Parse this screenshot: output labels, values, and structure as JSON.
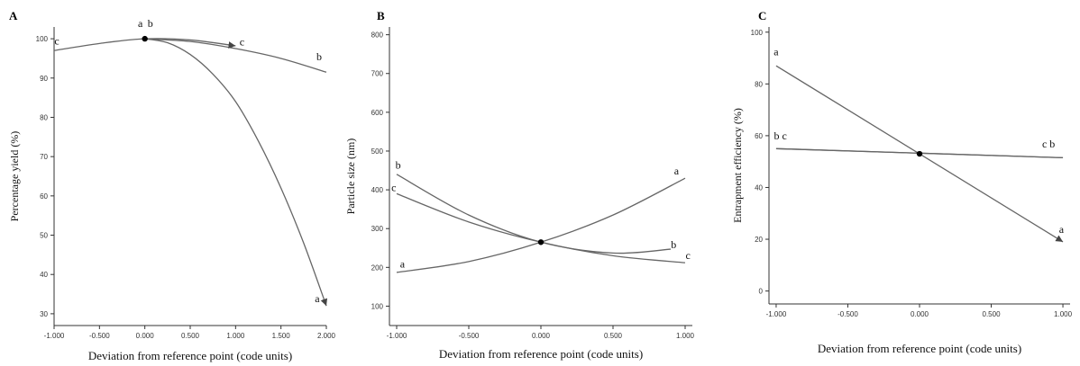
{
  "chart_data": [
    {
      "type": "line",
      "panel_label": "A",
      "xlabel": "Deviation from reference point (code units)",
      "ylabel": "Percentage yield (%)",
      "xlim": [
        -1.0,
        2.0
      ],
      "ylim": [
        27,
        103
      ],
      "xticks": [
        -1.0,
        -0.5,
        0.0,
        0.5,
        1.0,
        1.5,
        2.0
      ],
      "xtick_labels": [
        "-1.000",
        "-0.500",
        "0.000",
        "0.500",
        "1.000",
        "1.500",
        "2.000"
      ],
      "yticks": [
        30,
        40,
        50,
        60,
        70,
        80,
        90,
        100
      ],
      "ytick_labels": [
        "30",
        "40",
        "50",
        "60",
        "70",
        "80",
        "90",
        "100"
      ],
      "reference_point": {
        "x": 0.0,
        "y": 100
      },
      "series": [
        {
          "name": "a",
          "x": [
            0.0,
            0.25,
            0.5,
            0.75,
            1.0,
            1.25,
            1.5,
            1.75,
            2.0
          ],
          "y": [
            100,
            99,
            96,
            91,
            84,
            74,
            62,
            48,
            32
          ],
          "arrow": true
        },
        {
          "name": "b",
          "x": [
            0.0,
            0.5,
            1.0,
            1.5,
            2.0
          ],
          "y": [
            100,
            99.3,
            97.5,
            95,
            91.5
          ],
          "arrow": false
        },
        {
          "name": "c",
          "x": [
            -1.0,
            -0.5,
            0.0,
            0.5,
            1.0
          ],
          "y": [
            97,
            98.8,
            100,
            99.7,
            98.2
          ],
          "arrow": true
        }
      ],
      "curve_labels": [
        {
          "text": "a",
          "x": 1.9,
          "y": 33
        },
        {
          "text": "a",
          "x": -0.05,
          "y": 103
        },
        {
          "text": "b",
          "x": 0.06,
          "y": 103
        },
        {
          "text": "b",
          "x": 1.92,
          "y": 94.5
        },
        {
          "text": "c",
          "x": -0.97,
          "y": 98.5
        },
        {
          "text": "c",
          "x": 1.07,
          "y": 98.3
        }
      ]
    },
    {
      "type": "line",
      "panel_label": "B",
      "xlabel": "Deviation from reference point (code units)",
      "ylabel": "Particle size (nm)",
      "xlim": [
        -1.05,
        1.05
      ],
      "ylim": [
        50,
        820
      ],
      "xticks": [
        -1.0,
        -0.5,
        0.0,
        0.5,
        1.0
      ],
      "xtick_labels": [
        "-1.000",
        "-0.500",
        "0.000",
        "0.500",
        "1.000"
      ],
      "yticks": [
        100,
        200,
        300,
        400,
        500,
        600,
        700,
        800
      ],
      "ytick_labels": [
        "100",
        "200",
        "300",
        "400",
        "500",
        "600",
        "700",
        "800"
      ],
      "reference_point": {
        "x": 0.0,
        "y": 265
      },
      "series": [
        {
          "name": "a",
          "x": [
            -1.0,
            -0.5,
            0.0,
            0.5,
            1.0
          ],
          "y": [
            187,
            215,
            265,
            335,
            430
          ],
          "arrow": false
        },
        {
          "name": "b",
          "x": [
            -1.0,
            -0.5,
            0.0,
            0.5,
            0.9
          ],
          "y": [
            440,
            335,
            265,
            237,
            247
          ],
          "arrow": false
        },
        {
          "name": "c",
          "x": [
            -1.0,
            -0.5,
            0.0,
            0.5,
            1.0
          ],
          "y": [
            390,
            317,
            265,
            230,
            212
          ],
          "arrow": false
        }
      ],
      "curve_labels": [
        {
          "text": "a",
          "x": -0.96,
          "y": 200
        },
        {
          "text": "a",
          "x": 0.94,
          "y": 440
        },
        {
          "text": "b",
          "x": -0.99,
          "y": 455
        },
        {
          "text": "b",
          "x": 0.92,
          "y": 250
        },
        {
          "text": "c",
          "x": -1.02,
          "y": 397
        },
        {
          "text": "c",
          "x": 1.02,
          "y": 222
        }
      ]
    },
    {
      "type": "line",
      "panel_label": "C",
      "xlabel": "Deviation from reference point (code units)",
      "ylabel": "Entrapment efficiency (%)",
      "xlim": [
        -1.05,
        1.05
      ],
      "ylim": [
        -5,
        102
      ],
      "xticks": [
        -1.0,
        -0.5,
        0.0,
        0.5,
        1.0
      ],
      "xtick_labels": [
        "-1.000",
        "-0.500",
        "0.000",
        "0.500",
        "1.000"
      ],
      "yticks": [
        0,
        20,
        40,
        60,
        80,
        100
      ],
      "ytick_labels": [
        "0",
        "20",
        "40",
        "60",
        "80",
        "100"
      ],
      "reference_point": {
        "x": 0.0,
        "y": 53
      },
      "series": [
        {
          "name": "a",
          "x": [
            -1.0,
            1.0
          ],
          "y": [
            87,
            19
          ],
          "arrow": true
        },
        {
          "name": "b",
          "x": [
            -1.0,
            1.0
          ],
          "y": [
            55,
            51.5
          ],
          "arrow": false
        },
        {
          "name": "c",
          "x": [
            -1.0,
            1.0
          ],
          "y": [
            55,
            51.5
          ],
          "arrow": false
        }
      ],
      "curve_labels": [
        {
          "text": "a",
          "x": -1.0,
          "y": 91
        },
        {
          "text": "a",
          "x": 0.99,
          "y": 22.5
        },
        {
          "text": "b c",
          "x": -0.97,
          "y": 58.5
        },
        {
          "text": "c b",
          "x": 0.9,
          "y": 55.5
        }
      ]
    }
  ]
}
